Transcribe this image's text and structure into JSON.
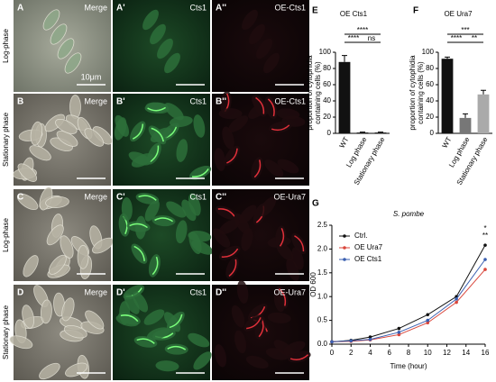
{
  "micrographs": {
    "rows": [
      {
        "label": "Log-phase",
        "panels": [
          {
            "letter": "A",
            "caption": "Merge"
          },
          {
            "letter": "A'",
            "caption": "Cts1"
          },
          {
            "letter": "A''",
            "caption": "OE-Cts1"
          }
        ],
        "scale": "10μm"
      },
      {
        "label": "Stationary phase",
        "panels": [
          {
            "letter": "B",
            "caption": "Merge"
          },
          {
            "letter": "B'",
            "caption": "Cts1"
          },
          {
            "letter": "B''",
            "caption": "OE-Cts1"
          }
        ]
      },
      {
        "label": "Log-phase",
        "panels": [
          {
            "letter": "C",
            "caption": "Merge"
          },
          {
            "letter": "C'",
            "caption": "Cts1"
          },
          {
            "letter": "C''",
            "caption": "OE-Ura7"
          }
        ]
      },
      {
        "label": "Stationary phase",
        "panels": [
          {
            "letter": "D",
            "caption": "Merge"
          },
          {
            "letter": "D'",
            "caption": "Cts1"
          },
          {
            "letter": "D''",
            "caption": "OE-Ura7"
          }
        ]
      }
    ]
  },
  "chart_data": [
    {
      "type": "bar",
      "letter": "E",
      "title": "OE Cts1",
      "ylabel": [
        "proportion of cytophidia",
        "containing cells (%)"
      ],
      "categories": [
        "WT",
        "Log phase",
        "Stationary phase"
      ],
      "values": [
        88,
        1,
        1
      ],
      "errors": [
        8,
        0.5,
        0.5
      ],
      "colors": [
        "#111111",
        "#111111",
        "#111111"
      ],
      "ylim": [
        0,
        100
      ],
      "yticks": [
        0,
        20,
        40,
        60,
        80,
        100
      ],
      "annotations": [
        "****",
        "****",
        "ns"
      ]
    },
    {
      "type": "bar",
      "letter": "F",
      "title": "OE Ura7",
      "ylabel": [
        "proportion of cytophidia",
        "containing cells (%)"
      ],
      "categories": [
        "WT",
        "Log phase",
        "Stationary phase"
      ],
      "values": [
        92,
        19,
        48
      ],
      "errors": [
        2,
        5,
        5
      ],
      "colors": [
        "#111111",
        "#777777",
        "#aaaaaa"
      ],
      "ylim": [
        0,
        100
      ],
      "yticks": [
        0,
        20,
        40,
        60,
        80,
        100
      ],
      "annotations": [
        "***",
        "****",
        "**"
      ]
    },
    {
      "type": "line",
      "letter": "G",
      "title": "S. pombe",
      "xlabel": "Time (hour)",
      "ylabel": "OD 600",
      "x": [
        0,
        2,
        4,
        7,
        10,
        13,
        16
      ],
      "series": [
        {
          "name": "Ctrl.",
          "color": "#111111",
          "values": [
            0.05,
            0.08,
            0.15,
            0.33,
            0.62,
            1.0,
            2.08
          ]
        },
        {
          "name": "OE Ura7",
          "color": "#d9463b",
          "values": [
            0.05,
            0.06,
            0.09,
            0.2,
            0.45,
            0.88,
            1.57
          ]
        },
        {
          "name": "OE Cts1",
          "color": "#3a5fb0",
          "values": [
            0.05,
            0.07,
            0.1,
            0.25,
            0.5,
            0.95,
            1.78
          ]
        }
      ],
      "xlim": [
        0,
        16
      ],
      "xticks": [
        0,
        2,
        4,
        6,
        8,
        10,
        12,
        14,
        16
      ],
      "ylim": [
        0,
        2.5
      ],
      "yticks": [
        {
          "value": 0,
          "label": "0.0"
        },
        {
          "value": 0.5,
          "label": "0.5"
        },
        {
          "value": 1,
          "label": "1.0"
        },
        {
          "value": 1.5,
          "label": "1.5"
        },
        {
          "value": 2,
          "label": "2.0"
        },
        {
          "value": 2.5,
          "label": "2.5"
        }
      ],
      "annotations": [
        "*",
        "**"
      ]
    }
  ]
}
